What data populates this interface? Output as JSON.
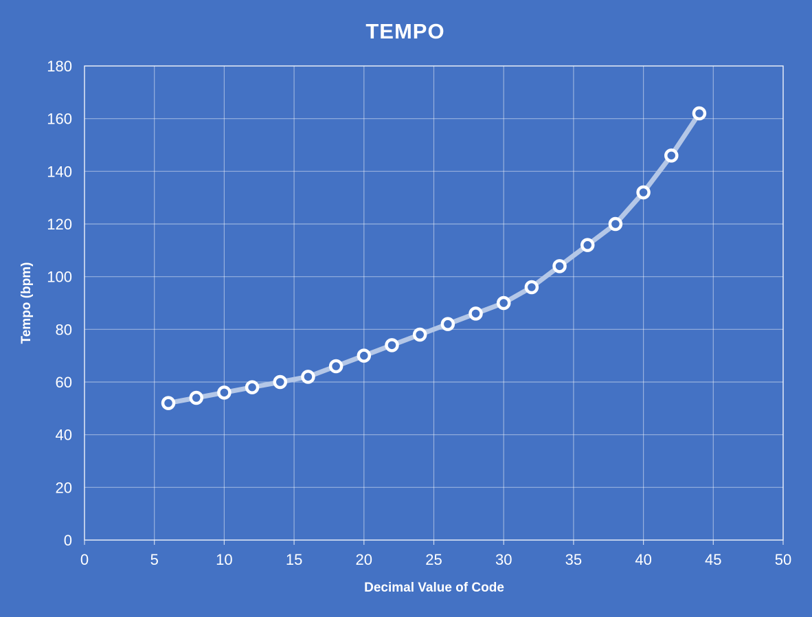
{
  "chart_data": {
    "type": "line",
    "title": "TEMPO",
    "xlabel": "Decimal Value of Code",
    "ylabel": "Tempo (bpm)",
    "x": [
      6,
      8,
      10,
      12,
      14,
      16,
      18,
      20,
      22,
      24,
      26,
      28,
      30,
      32,
      34,
      36,
      38,
      40,
      42,
      44
    ],
    "y": [
      52,
      54,
      56,
      58,
      60,
      62,
      66,
      70,
      74,
      78,
      82,
      86,
      90,
      96,
      104,
      112,
      120,
      132,
      146,
      162
    ],
    "xlim": [
      0,
      50
    ],
    "ylim": [
      0,
      180
    ],
    "xticks": [
      0,
      5,
      10,
      15,
      20,
      25,
      30,
      35,
      40,
      45,
      50
    ],
    "yticks": [
      0,
      20,
      40,
      60,
      80,
      100,
      120,
      140,
      160,
      180
    ],
    "grid": true,
    "legend": false,
    "marker_style": "open-circle",
    "colors": {
      "background": "#4472C4",
      "line": "#B4C7E7",
      "marker_ring": "#FFFFFF",
      "marker_fill": "#4472C4",
      "gridline": "rgba(255,255,255,0.45)",
      "plot_border": "rgba(255,255,255,0.75)",
      "text": "#FFFFFF"
    }
  }
}
